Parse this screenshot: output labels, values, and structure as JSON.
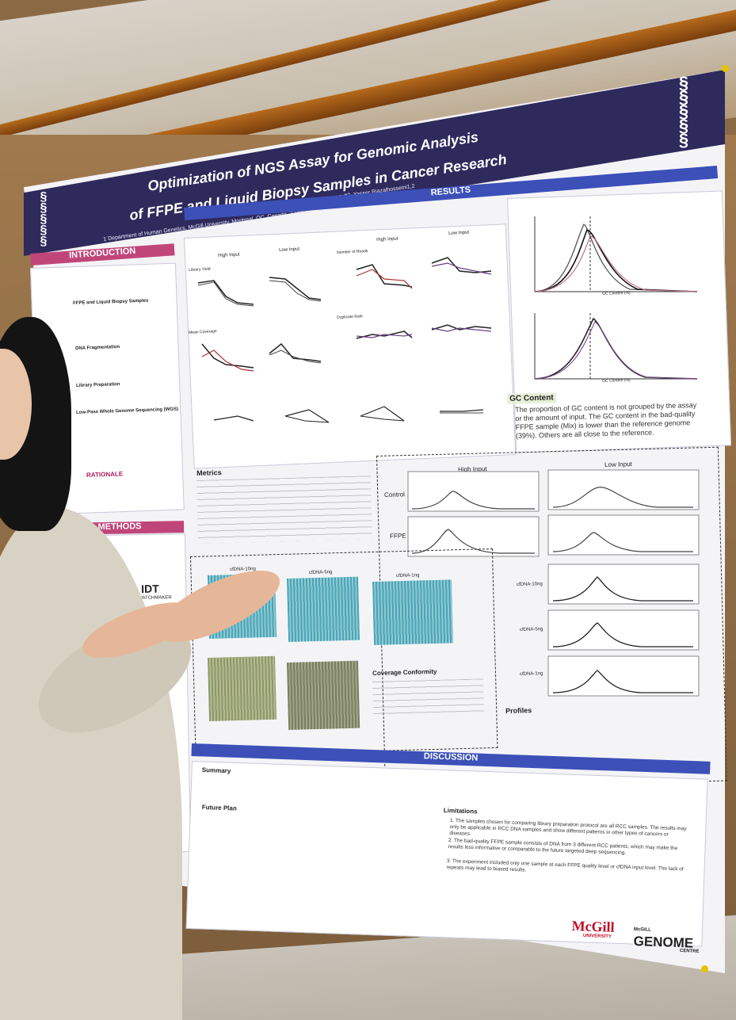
{
  "poster": {
    "title_line1": "Optimization of NGS Assay for Genomic Analysis",
    "title_line2": "of FFPE and Liquid Biopsy Samples in Cancer Research",
    "authors": "Peixi Liu1,2, Kate I Glennon1,2, Madeleine Arseneault2, Yasser Riazalhosseini1,2",
    "affiliations": "1 Department of Human Genetics, McGill University, Montreal, QC, Canada.    2 Victor Phillip Dahdaleh Institute of Genomic Medicine, McGill University, Montreal, QC, Canada.",
    "sections": {
      "introduction": "INTRODUCTION",
      "rationale": "RATIONALE",
      "methods": "METHODS",
      "results": "RESULTS",
      "discussion": "DISCUSSION"
    },
    "intro_items": [
      "FFPE and Liquid Biopsy Samples",
      "DNA Fragmentation",
      "Library Preparation",
      "Low-Pass Whole Genome Sequencing (WGS)"
    ],
    "results_labels": {
      "high_input": "High Input",
      "low_input": "Low Input",
      "library_yield": "Library Yield",
      "number_of_reads": "Number of Reads",
      "mean_coverage": "Mean Coverage",
      "duplicate_rate": "Duplicate Rate",
      "metrics": "Metrics",
      "control": "Control",
      "ffpe": "FFPE",
      "cfdna_10ng": "cfDNA-10ng",
      "cfdna_5ng": "cfDNA-5ng",
      "cfdna_1ng": "cfDNA-1ng",
      "coverage_conformity": "Coverage Conformity",
      "profiles": "Profiles",
      "gc_axis": "GC Content (%)"
    },
    "gc_content": {
      "heading": "GC Content",
      "text": "The proportion of GC content is not grouped by the assay or the amount of input. The GC content in the bad-quality FFPE sample (Mix) is lower than the reference genome (39%). Others are all close to the reference."
    },
    "discussion": {
      "summary": "Summary",
      "future_plan": "Future Plan",
      "limitations": "Limitations",
      "limitation_1": "1. The samples chosen for comparing library preparation protocol are all RCC samples. The results may only be applicable in RCC DNA samples and show different patterns in other types of cancers or diseases.",
      "limitation_2": "2. The bad-quality FFPE sample consists of DNA from 3 different RCC patients, which may make the results less informative or comparable to the future targeted deep sequencing.",
      "limitation_3": "3. The experiment included only one sample at each FFPE quality level or cfDNA input level. The lack of repeats may lead to biased results."
    },
    "logos": {
      "mcgill": "McGill",
      "mcgill_sub": "UNIVERSITY",
      "genome": "GENOME",
      "genome_top": "McGILL",
      "genome_sub": "CENTRE",
      "idt": "IDT",
      "watchmaker": "WATCHMAKER"
    }
  },
  "colors": {
    "header": "#2f2a5c",
    "pink": "#c0467a",
    "blue": "#3c50b8",
    "teal": "#4aa6b8"
  }
}
